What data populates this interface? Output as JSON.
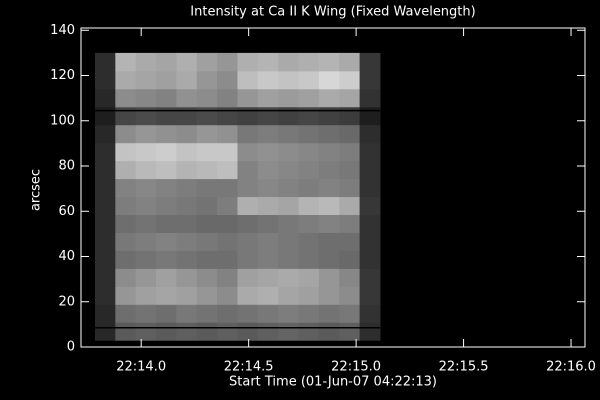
{
  "chart_data": {
    "type": "image",
    "title": "Intensity at Ca II K Wing (Fixed Wavelength)",
    "xlabel": "Start Time (01-Jun-07 04:22:13)",
    "ylabel": "arcsec",
    "xlim": [
      13.72,
      16.065
    ],
    "ylim": [
      0,
      141
    ],
    "xticks": [
      {
        "value": 14.0,
        "label": "22:14.0"
      },
      {
        "value": 14.5,
        "label": "22:14.5"
      },
      {
        "value": 15.0,
        "label": "22:15.0"
      },
      {
        "value": 15.5,
        "label": "22:15.5"
      },
      {
        "value": 16.0,
        "label": "22:16.0"
      }
    ],
    "yticks": [
      0,
      20,
      40,
      60,
      80,
      100,
      120,
      140
    ],
    "image_x": [
      13.785,
      15.111
    ],
    "image_y": [
      3,
      130
    ],
    "zlim": [
      0,
      255
    ],
    "colormap": "gray",
    "z": [
      [
        40,
        90,
        95,
        90,
        95,
        90,
        95,
        90,
        95,
        100,
        95,
        90,
        95,
        45
      ],
      [
        40,
        110,
        115,
        110,
        120,
        115,
        110,
        115,
        120,
        125,
        120,
        115,
        120,
        50
      ],
      [
        45,
        150,
        160,
        165,
        160,
        150,
        140,
        170,
        175,
        165,
        160,
        150,
        140,
        55
      ],
      [
        45,
        140,
        150,
        160,
        150,
        140,
        130,
        160,
        165,
        170,
        165,
        150,
        135,
        55
      ],
      [
        45,
        110,
        115,
        120,
        115,
        110,
        110,
        120,
        125,
        120,
        115,
        110,
        105,
        50
      ],
      [
        45,
        120,
        125,
        130,
        125,
        120,
        115,
        120,
        125,
        120,
        115,
        110,
        110,
        50
      ],
      [
        45,
        110,
        115,
        110,
        110,
        105,
        105,
        110,
        115,
        120,
        125,
        130,
        125,
        50
      ],
      [
        45,
        125,
        130,
        125,
        120,
        115,
        125,
        175,
        170,
        165,
        180,
        185,
        170,
        55
      ],
      [
        45,
        130,
        135,
        130,
        125,
        120,
        120,
        130,
        135,
        130,
        125,
        130,
        125,
        50
      ],
      [
        45,
        175,
        185,
        190,
        180,
        185,
        190,
        130,
        140,
        135,
        130,
        125,
        120,
        50
      ],
      [
        45,
        195,
        200,
        205,
        195,
        200,
        200,
        140,
        145,
        140,
        135,
        130,
        125,
        50
      ],
      [
        40,
        140,
        150,
        145,
        140,
        150,
        145,
        120,
        125,
        120,
        115,
        110,
        105,
        45
      ],
      [
        30,
        70,
        75,
        70,
        70,
        75,
        70,
        65,
        70,
        65,
        70,
        65,
        60,
        30
      ],
      [
        40,
        140,
        135,
        130,
        145,
        140,
        130,
        150,
        160,
        155,
        160,
        170,
        165,
        50
      ],
      [
        45,
        170,
        165,
        160,
        170,
        150,
        140,
        190,
        200,
        195,
        200,
        215,
        205,
        55
      ],
      [
        45,
        180,
        170,
        165,
        175,
        160,
        150,
        175,
        180,
        170,
        175,
        180,
        170,
        55
      ]
    ],
    "hlines": [
      104.5,
      8.5
    ],
    "hline_color": "#000000",
    "axis_color": "#ffffff"
  }
}
